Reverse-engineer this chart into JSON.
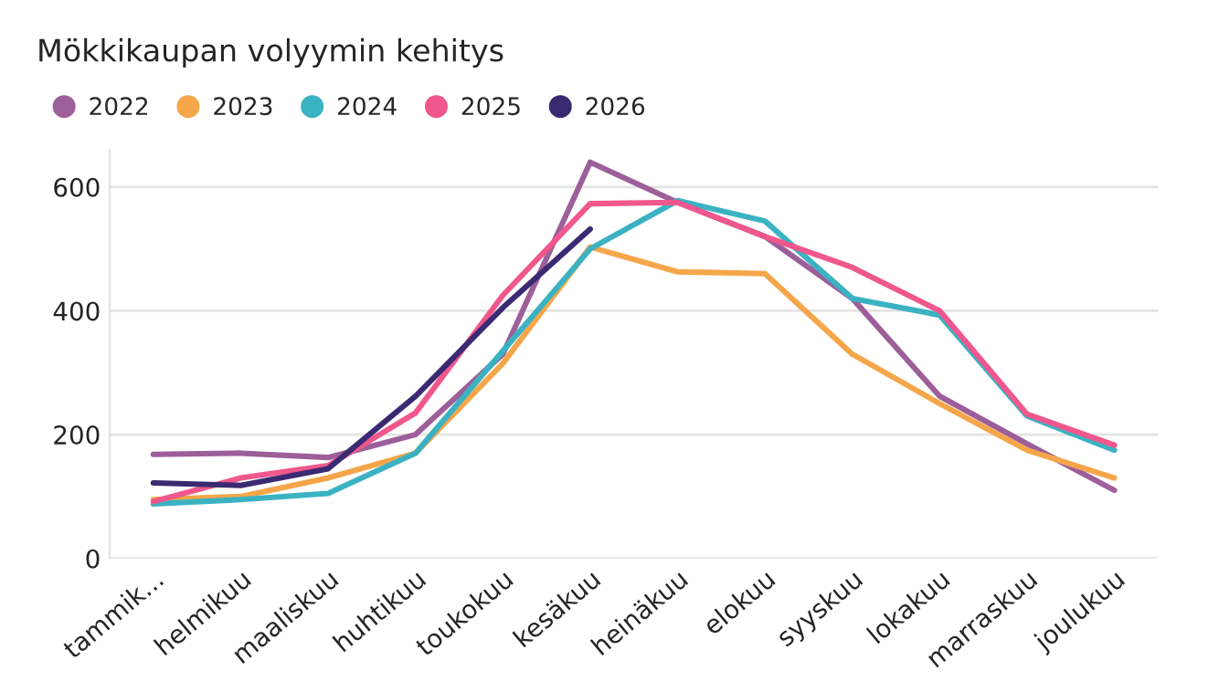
{
  "chart_data": {
    "type": "line",
    "title": "Mökkikaupan volyymin kehitys",
    "categories": [
      "tammik...",
      "helmikuu",
      "maaliskuu",
      "huhtikuu",
      "toukokuu",
      "kesäkuu",
      "heinäkuu",
      "elokuu",
      "syyskuu",
      "lokakuu",
      "marraskuu",
      "joulukuu"
    ],
    "series": [
      {
        "name": "2022",
        "color": "#9c5f99",
        "values": [
          168,
          170,
          163,
          200,
          330,
          640,
          575,
          520,
          420,
          262,
          185,
          110
        ]
      },
      {
        "name": "2023",
        "color": "#f5a64a",
        "values": [
          95,
          100,
          130,
          170,
          315,
          503,
          463,
          460,
          330,
          250,
          175,
          130
        ]
      },
      {
        "name": "2024",
        "color": "#3bb2c2",
        "values": [
          88,
          95,
          105,
          170,
          335,
          500,
          578,
          545,
          420,
          393,
          230,
          175
        ]
      },
      {
        "name": "2025",
        "color": "#f0578d",
        "values": [
          92,
          130,
          150,
          235,
          425,
          573,
          575,
          520,
          470,
          400,
          233,
          183
        ]
      },
      {
        "name": "2026",
        "color": "#3b2a72",
        "values": [
          122,
          118,
          145,
          262,
          405,
          532,
          null,
          null,
          null,
          null,
          null,
          null
        ]
      }
    ],
    "ylim": [
      0,
      660
    ],
    "yticks": [
      0,
      200,
      400,
      600
    ],
    "grid": "y",
    "legend": "top left",
    "marker": "none",
    "line_style": "solid"
  }
}
